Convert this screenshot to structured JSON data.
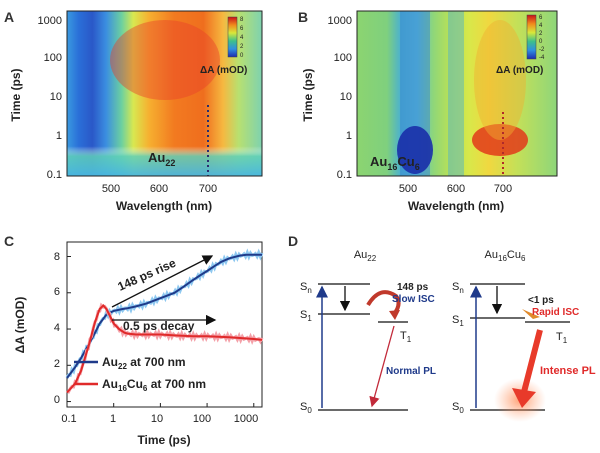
{
  "panels": {
    "A": {
      "letter": "A",
      "sample": "Au",
      "sample_sub": "22",
      "ylabel": "Time (ps)",
      "xlabel": "Wavelength (nm)",
      "cbar_label": "ΔA (mOD)",
      "cbar_ticks": [
        "8",
        "6",
        "4",
        "2",
        "0"
      ],
      "y_ticks": [
        "1000",
        "100",
        "10",
        "1",
        "0.1"
      ],
      "x_ticks": [
        "500",
        "600",
        "700"
      ]
    },
    "B": {
      "letter": "B",
      "sample_a": "Au",
      "sub_a": "16",
      "sample_b": "Cu",
      "sub_b": "6",
      "ylabel": "Time (ps)",
      "xlabel": "Wavelength (nm)",
      "cbar_label": "ΔA (mOD)",
      "cbar_ticks": [
        "6",
        "4",
        "2",
        "0",
        "-2",
        "-4"
      ],
      "y_ticks": [
        "1000",
        "100",
        "10",
        "1",
        "0.1"
      ],
      "x_ticks": [
        "500",
        "600",
        "700"
      ]
    },
    "C": {
      "letter": "C",
      "ylabel": "ΔA (mOD)",
      "xlabel": "Time (ps)",
      "y_ticks": [
        "8",
        "6",
        "4",
        "2",
        "0"
      ],
      "x_ticks": [
        "0.1",
        "1",
        "10",
        "100",
        "1000"
      ],
      "annot_rise": "148 ps rise",
      "annot_decay": "0.5 ps decay",
      "legend1_a": "Au",
      "legend1_sub": "22",
      "legend1_b": " at 700 nm",
      "legend2_a": "Au",
      "legend2_sub1": "16",
      "legend2_b": "Cu",
      "legend2_sub2": "6",
      "legend2_c": " at 700 nm"
    },
    "D": {
      "letter": "D",
      "left_title": "Au",
      "left_sub": "22",
      "right_title_a": "Au",
      "right_sub_a": "16",
      "right_title_b": "Cu",
      "right_sub_b": "6",
      "sn": "S",
      "sn_sub": "n",
      "s1": "S",
      "s1_sub": "1",
      "s0": "S",
      "s0_sub": "0",
      "t1": "T",
      "t1_sub": "1",
      "left_time": "148 ps",
      "left_isc": "Slow ISC",
      "left_pl": "Normal PL",
      "right_time": "<1 ps",
      "right_isc": "Rapid ISC",
      "right_pl": "Intense PL"
    }
  },
  "colors": {
    "au22": "#1f3a8a",
    "au16cu6": "#e02a2a",
    "isc_left": "#c0392b",
    "isc_right": "#e08a2b",
    "label_blue": "#1f3a8a",
    "label_red": "#e02a2a"
  },
  "chart_data": [
    {
      "type": "heatmap",
      "title": "",
      "xlabel": "Wavelength (nm)",
      "ylabel": "Time (ps)",
      "xlim": [
        440,
        770
      ],
      "ylim": [
        0.1,
        2000
      ],
      "yscale": "log",
      "colorbar_range": [
        -1,
        9
      ],
      "marker_line_nm": 700,
      "sample": "Au22"
    },
    {
      "type": "heatmap",
      "title": "",
      "xlabel": "Wavelength (nm)",
      "ylabel": "Time (ps)",
      "xlim": [
        440,
        770
      ],
      "ylim": [
        0.1,
        2000
      ],
      "yscale": "log",
      "colorbar_range": [
        -5,
        7
      ],
      "marker_line_nm": 700,
      "sample": "Au16Cu6"
    },
    {
      "type": "line",
      "xlabel": "Time (ps)",
      "ylabel": "ΔA (mOD)",
      "xscale": "log",
      "xlim": [
        0.1,
        1500
      ],
      "ylim": [
        -0.3,
        8.8
      ],
      "series": [
        {
          "name": "Au22 at 700 nm",
          "x": [
            0.1,
            0.15,
            0.2,
            0.3,
            0.4,
            0.5,
            0.7,
            1,
            1.5,
            2,
            3,
            5,
            7,
            10,
            20,
            30,
            50,
            70,
            100,
            150,
            200,
            300,
            500,
            700,
            1000,
            1500
          ],
          "y": [
            1.3,
            1.9,
            2.4,
            3.2,
            3.8,
            4.3,
            4.8,
            5.0,
            5.1,
            5.15,
            5.25,
            5.4,
            5.55,
            5.7,
            6.0,
            6.3,
            6.7,
            6.95,
            7.2,
            7.5,
            7.7,
            7.9,
            8.05,
            8.1,
            8.1,
            8.1
          ]
        },
        {
          "name": "Au16Cu6 at 700 nm",
          "x": [
            0.1,
            0.15,
            0.2,
            0.3,
            0.4,
            0.5,
            0.6,
            0.7,
            0.8,
            1,
            1.3,
            1.7,
            2,
            3,
            5,
            10,
            20,
            50,
            100,
            300,
            1000,
            1500
          ],
          "y": [
            0.5,
            1.0,
            1.7,
            3.2,
            4.4,
            5.1,
            5.3,
            5.1,
            4.8,
            4.3,
            4.0,
            3.8,
            3.75,
            3.7,
            3.7,
            3.7,
            3.65,
            3.6,
            3.6,
            3.55,
            3.45,
            3.4
          ]
        }
      ]
    }
  ]
}
